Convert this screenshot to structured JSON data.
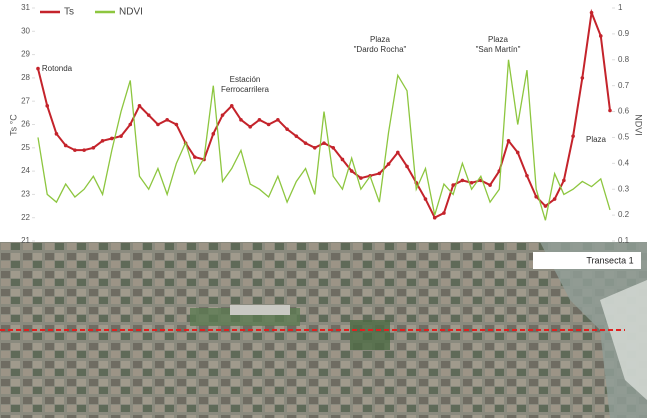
{
  "chart_data": {
    "type": "line",
    "series": [
      {
        "name": "Ts",
        "color": "#c4232b",
        "values": [
          28.4,
          26.8,
          25.6,
          25.1,
          24.9,
          24.9,
          25.0,
          25.3,
          25.4,
          25.5,
          26.0,
          26.8,
          26.4,
          26.0,
          26.2,
          26.0,
          25.2,
          24.6,
          24.5,
          25.6,
          26.4,
          26.8,
          26.2,
          25.9,
          26.2,
          26.0,
          26.2,
          25.8,
          25.5,
          25.2,
          25.0,
          25.2,
          25.0,
          24.5,
          24.0,
          23.7,
          23.8,
          23.9,
          24.3,
          24.8,
          24.2,
          23.5,
          22.8,
          22.0,
          22.2,
          23.4,
          23.6,
          23.5,
          23.6,
          23.4,
          24.0,
          25.3,
          24.8,
          23.8,
          22.9,
          22.5,
          22.8,
          23.6,
          25.5,
          28.0,
          30.8,
          29.8,
          26.6
        ]
      },
      {
        "name": "NDVI",
        "color": "#8dc63f",
        "axis": "y2",
        "values": [
          0.5,
          0.28,
          0.25,
          0.32,
          0.27,
          0.3,
          0.35,
          0.28,
          0.45,
          0.6,
          0.72,
          0.35,
          0.3,
          0.38,
          0.28,
          0.4,
          0.48,
          0.36,
          0.42,
          0.7,
          0.33,
          0.38,
          0.45,
          0.32,
          0.3,
          0.27,
          0.35,
          0.25,
          0.33,
          0.38,
          0.28,
          0.6,
          0.35,
          0.3,
          0.42,
          0.3,
          0.35,
          0.25,
          0.52,
          0.74,
          0.68,
          0.3,
          0.38,
          0.2,
          0.32,
          0.28,
          0.4,
          0.3,
          0.35,
          0.25,
          0.3,
          0.8,
          0.55,
          0.76,
          0.3,
          0.18,
          0.36,
          0.28,
          0.3,
          0.33,
          0.31,
          0.34,
          0.22
        ]
      }
    ],
    "x": [
      0,
      1,
      2,
      3,
      4,
      5,
      6,
      7,
      8,
      9,
      10,
      11,
      12,
      13,
      14,
      15,
      16,
      17,
      18,
      19,
      20,
      21,
      22,
      23,
      24,
      25,
      26,
      27,
      28,
      29,
      30,
      31,
      32,
      33,
      34,
      35,
      36,
      37,
      38,
      39,
      40,
      41,
      42,
      43,
      44,
      45,
      46,
      47,
      48,
      49,
      50,
      51,
      52,
      53,
      54,
      55,
      56,
      57,
      58,
      59,
      60,
      61,
      62
    ],
    "xlim": [
      0,
      62
    ],
    "ylabel": "Ts °C",
    "y2label": "NDVI",
    "ylim": [
      21,
      31
    ],
    "yticks": [
      21,
      22,
      23,
      24,
      25,
      26,
      27,
      28,
      29,
      30,
      31
    ],
    "y2lim": [
      0.1,
      1.0
    ],
    "y2ticks": [
      0.1,
      0.2,
      0.3,
      0.4,
      0.5,
      0.6,
      0.7,
      0.8,
      0.9,
      1.0
    ],
    "legend": "top-left",
    "annotations": [
      [
        "Rotonda"
      ],
      [
        "Estación",
        "Ferrocarrilera"
      ],
      [
        "Plaza",
        "\"Dardo Rocha\""
      ],
      [
        "Plaza",
        "\"San Martín\""
      ],
      [
        "Plaza"
      ]
    ]
  },
  "map_label": "Transecta 1"
}
